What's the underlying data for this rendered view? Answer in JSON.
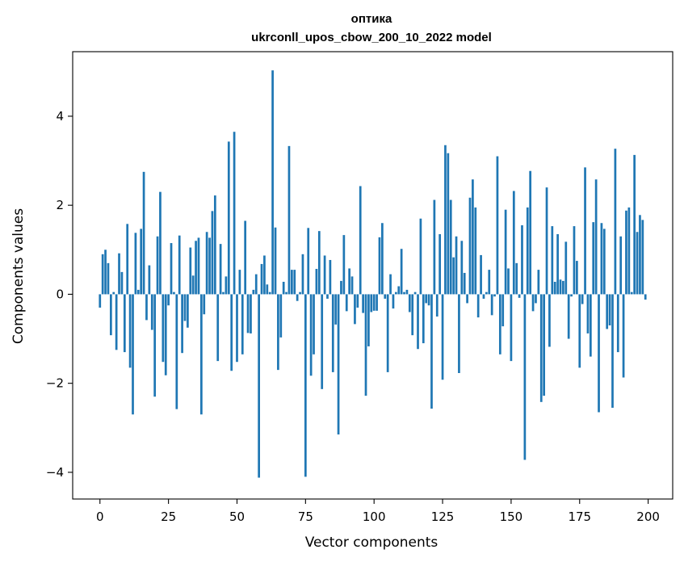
{
  "chart_data": {
    "type": "bar",
    "title": "оптика",
    "subtitle": "ukrconll_upos_cbow_200_10_2022 model",
    "xlabel": "Vector components",
    "ylabel": "Components values",
    "xlim": [
      -9.95,
      208.95
    ],
    "ylim": [
      -4.6,
      5.45
    ],
    "xticks": [
      0,
      25,
      50,
      75,
      100,
      125,
      150,
      175,
      200
    ],
    "xtick_labels": [
      "0",
      "25",
      "50",
      "75",
      "100",
      "125",
      "150",
      "175",
      "200"
    ],
    "yticks": [
      -4,
      -2,
      0,
      2,
      4
    ],
    "ytick_labels": [
      "−4",
      "−2",
      "0",
      "2",
      "4"
    ],
    "grid": false,
    "x": [
      0,
      1,
      2,
      3,
      4,
      5,
      6,
      7,
      8,
      9,
      10,
      11,
      12,
      13,
      14,
      15,
      16,
      17,
      18,
      19,
      20,
      21,
      22,
      23,
      24,
      25,
      26,
      27,
      28,
      29,
      30,
      31,
      32,
      33,
      34,
      35,
      36,
      37,
      38,
      39,
      40,
      41,
      42,
      43,
      44,
      45,
      46,
      47,
      48,
      49,
      50,
      51,
      52,
      53,
      54,
      55,
      56,
      57,
      58,
      59,
      60,
      61,
      62,
      63,
      64,
      65,
      66,
      67,
      68,
      69,
      70,
      71,
      72,
      73,
      74,
      75,
      76,
      77,
      78,
      79,
      80,
      81,
      82,
      83,
      84,
      85,
      86,
      87,
      88,
      89,
      90,
      91,
      92,
      93,
      94,
      95,
      96,
      97,
      98,
      99,
      100,
      101,
      102,
      103,
      104,
      105,
      106,
      107,
      108,
      109,
      110,
      111,
      112,
      113,
      114,
      115,
      116,
      117,
      118,
      119,
      120,
      121,
      122,
      123,
      124,
      125,
      126,
      127,
      128,
      129,
      130,
      131,
      132,
      133,
      134,
      135,
      136,
      137,
      138,
      139,
      140,
      141,
      142,
      143,
      144,
      145,
      146,
      147,
      148,
      149,
      150,
      151,
      152,
      153,
      154,
      155,
      156,
      157,
      158,
      159,
      160,
      161,
      162,
      163,
      164,
      165,
      166,
      167,
      168,
      169,
      170,
      171,
      172,
      173,
      174,
      175,
      176,
      177,
      178,
      179,
      180,
      181,
      182,
      183,
      184,
      185,
      186,
      187,
      188,
      189,
      190,
      191,
      192,
      193,
      194,
      195,
      196,
      197,
      198,
      199
    ],
    "values": [
      -0.3,
      0.9,
      1.0,
      0.7,
      -0.92,
      0.05,
      -1.25,
      0.92,
      0.5,
      -1.3,
      1.58,
      -1.65,
      -2.7,
      1.38,
      0.1,
      1.47,
      2.75,
      -0.58,
      0.65,
      -0.8,
      -2.3,
      1.3,
      2.3,
      -1.52,
      -1.82,
      -0.25,
      1.15,
      0.05,
      -2.58,
      1.32,
      -1.32,
      -0.6,
      -0.75,
      1.05,
      0.42,
      1.2,
      1.27,
      -2.7,
      -0.45,
      1.4,
      1.27,
      1.87,
      2.22,
      -1.5,
      1.13,
      0.05,
      0.4,
      3.43,
      -1.72,
      3.65,
      -1.52,
      0.55,
      -1.35,
      1.65,
      -0.87,
      -0.88,
      0.1,
      0.45,
      -4.12,
      0.68,
      0.87,
      0.22,
      0.05,
      5.03,
      1.5,
      -1.7,
      -0.97,
      0.28,
      0.05,
      3.33,
      0.55,
      0.55,
      -0.15,
      0.05,
      0.9,
      -4.1,
      1.49,
      -1.83,
      -1.35,
      0.57,
      1.42,
      -2.13,
      0.87,
      -0.1,
      0.77,
      -1.75,
      -0.68,
      -3.15,
      0.3,
      1.33,
      -0.38,
      0.58,
      0.4,
      -0.67,
      -0.3,
      2.43,
      -0.42,
      -2.28,
      -1.17,
      -0.4,
      -0.37,
      -0.37,
      1.28,
      1.6,
      -0.1,
      -1.75,
      0.45,
      -0.32,
      0.05,
      0.18,
      1.02,
      0.05,
      0.1,
      -0.4,
      -0.92,
      0.05,
      -1.23,
      1.7,
      -1.1,
      -0.2,
      -0.25,
      -2.57,
      2.12,
      -0.5,
      1.35,
      -1.92,
      3.35,
      3.17,
      2.12,
      0.83,
      1.3,
      -1.77,
      1.2,
      0.48,
      -0.2,
      2.17,
      2.58,
      1.95,
      -0.52,
      0.88,
      -0.1,
      0.05,
      0.55,
      -0.47,
      -0.05,
      3.1,
      -1.35,
      -0.72,
      1.9,
      0.58,
      -1.5,
      2.32,
      0.7,
      -0.08,
      1.55,
      -3.72,
      1.95,
      2.77,
      -0.38,
      -0.2,
      0.55,
      -2.42,
      -2.28,
      2.4,
      -1.18,
      1.53,
      0.28,
      1.35,
      0.33,
      0.3,
      1.18,
      -1.0,
      -0.05,
      1.53,
      0.75,
      -1.65,
      -0.22,
      2.85,
      -0.88,
      -1.4,
      1.62,
      2.58,
      -2.65,
      1.6,
      1.47,
      -0.78,
      -0.7,
      -2.55,
      3.27,
      -1.3,
      1.3,
      -1.87,
      1.88,
      1.95,
      0.05,
      3.13,
      1.4,
      1.78,
      1.67,
      -0.12
    ]
  }
}
